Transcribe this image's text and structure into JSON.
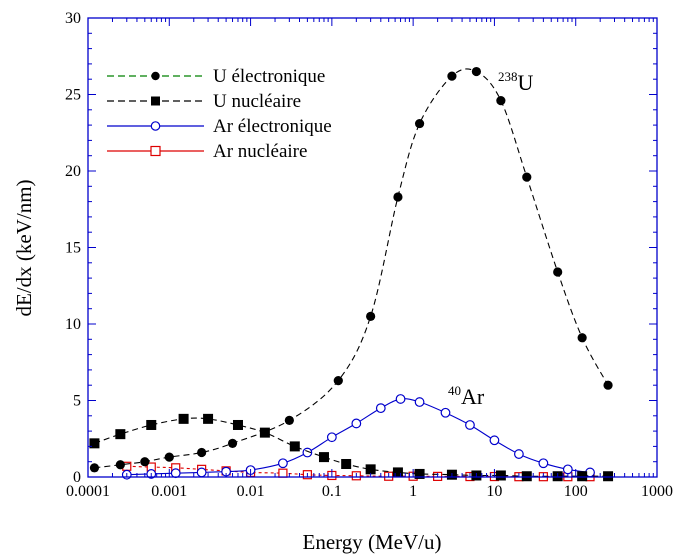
{
  "chart_data": {
    "type": "scatter",
    "xlabel": "Energy (MeV/u)",
    "ylabel": "dE/dx (keV/nm)",
    "xscale": "log",
    "xlim": [
      0.0001,
      1000
    ],
    "ylim": [
      0,
      30
    ],
    "x_ticks": [
      "0.0001",
      "0.001",
      "0.01",
      "0.1",
      "1",
      "10",
      "100",
      "1000"
    ],
    "y_ticks": [
      "0",
      "5",
      "10",
      "15",
      "20",
      "25",
      "30"
    ],
    "legend_position": "top-left",
    "series": [
      {
        "name": "U électronique",
        "color": "#000000",
        "legend_color": "#008000",
        "marker": "filled-circle",
        "line": "dashed",
        "x": [
          0.00012,
          0.00025,
          0.0005,
          0.001,
          0.0025,
          0.006,
          0.03,
          0.12,
          0.3,
          0.65,
          1.2,
          3.0,
          6.0,
          12,
          25,
          60,
          120,
          250
        ],
        "y": [
          0.6,
          0.8,
          1.0,
          1.3,
          1.6,
          2.2,
          3.7,
          6.3,
          10.5,
          18.3,
          23.1,
          26.2,
          26.5,
          24.6,
          19.6,
          13.4,
          9.1,
          6.0
        ]
      },
      {
        "name": "U nucléaire",
        "color": "#000000",
        "legend_color": "#000000",
        "marker": "filled-square",
        "line": "dashed",
        "x": [
          0.00012,
          0.00025,
          0.0006,
          0.0015,
          0.003,
          0.007,
          0.015,
          0.035,
          0.08,
          0.15,
          0.3,
          0.65,
          1.2,
          3,
          6,
          12,
          25,
          60,
          120,
          250
        ],
        "y": [
          2.2,
          2.8,
          3.4,
          3.8,
          3.8,
          3.4,
          2.9,
          2.0,
          1.3,
          0.85,
          0.5,
          0.3,
          0.2,
          0.15,
          0.1,
          0.1,
          0.05,
          0.05,
          0.05,
          0.05
        ]
      },
      {
        "name": "Ar électronique",
        "color": "#0000cc",
        "legend_color": "#0000cc",
        "marker": "open-circle",
        "line": "solid",
        "x": [
          0.0003,
          0.0006,
          0.0012,
          0.0025,
          0.005,
          0.01,
          0.025,
          0.05,
          0.1,
          0.2,
          0.4,
          0.7,
          1.2,
          2.5,
          5,
          10,
          20,
          40,
          80,
          150
        ],
        "y": [
          0.15,
          0.2,
          0.25,
          0.3,
          0.35,
          0.45,
          0.9,
          1.6,
          2.6,
          3.5,
          4.5,
          5.1,
          4.9,
          4.2,
          3.4,
          2.4,
          1.5,
          0.9,
          0.5,
          0.3
        ]
      },
      {
        "name": "Ar nucléaire",
        "color": "#dd0000",
        "legend_color": "#dd0000",
        "marker": "open-square",
        "line": "solid",
        "x": [
          0.0003,
          0.0006,
          0.0012,
          0.0025,
          0.005,
          0.01,
          0.025,
          0.05,
          0.1,
          0.2,
          0.5,
          1,
          2,
          5,
          10,
          20,
          40,
          80,
          150
        ],
        "y": [
          0.7,
          0.65,
          0.6,
          0.5,
          0.4,
          0.3,
          0.25,
          0.15,
          0.1,
          0.08,
          0.05,
          0.05,
          0.04,
          0.03,
          0.03,
          0.02,
          0.02,
          0.02,
          0.02
        ]
      }
    ],
    "annotations": [
      {
        "sup": "238",
        "text": "U"
      },
      {
        "sup": "40",
        "text": "Ar"
      }
    ]
  }
}
